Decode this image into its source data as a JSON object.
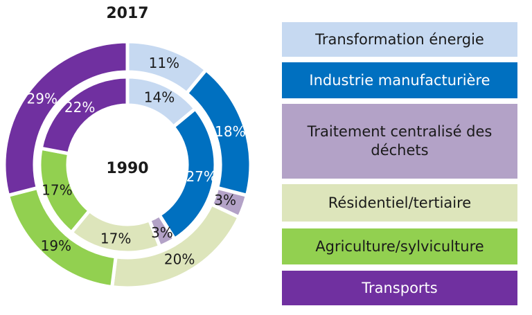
{
  "chart_data": {
    "type": "donut",
    "outer_label": "2017",
    "inner_label": "1990",
    "categories": [
      "Transformation énergie",
      "Industrie manufacturière",
      "Traitement centralisé des déchets",
      "Résidentiel/tertiaire",
      "Agriculture/sylviculture",
      "Transports"
    ],
    "colors": [
      "#c6d9f1",
      "#0070c0",
      "#b3a2c7",
      "#dde5bb",
      "#92d050",
      "#7030a0"
    ],
    "series": [
      {
        "name": "2017",
        "values": [
          11,
          18,
          3,
          20,
          19,
          29
        ],
        "labels": [
          "11%",
          "18%",
          "3%",
          "20%",
          "19%",
          "29%"
        ]
      },
      {
        "name": "1990",
        "values": [
          14,
          27,
          3,
          17,
          17,
          22
        ],
        "labels": [
          "14%",
          "27%",
          "3%",
          "17%",
          "17%",
          "22%"
        ]
      }
    ],
    "legend_position": "right"
  }
}
